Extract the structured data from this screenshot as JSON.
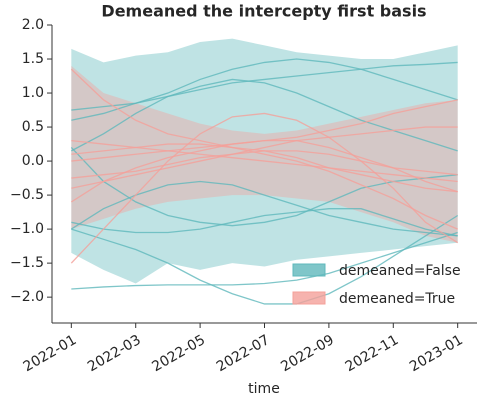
{
  "chart_data": {
    "type": "band-lines",
    "title": "Demeaned the intercepty first basis",
    "xlabel": "time",
    "x": [
      "2022-01",
      "2022-02",
      "2022-03",
      "2022-04",
      "2022-05",
      "2022-06",
      "2022-07",
      "2022-08",
      "2022-09",
      "2022-10",
      "2022-11",
      "2022-12",
      "2023-01"
    ],
    "xticks": [
      "2022-01",
      "2022-03",
      "2022-05",
      "2022-07",
      "2022-09",
      "2022-11",
      "2023-01"
    ],
    "ylim": [
      -2.38,
      2.0
    ],
    "yticks": [
      {
        "value": -2,
        "label": "−2.0"
      },
      {
        "value": -1.5,
        "label": "−1.5"
      },
      {
        "value": -1,
        "label": "−1.0"
      },
      {
        "value": -0.5,
        "label": "−0.5"
      },
      {
        "value": 0,
        "label": "0.0"
      },
      {
        "value": 0.5,
        "label": "0.5"
      },
      {
        "value": 1,
        "label": "1.0"
      },
      {
        "value": 1.5,
        "label": "1.5"
      },
      {
        "value": 2,
        "label": "2.0"
      }
    ],
    "legend": "lower right",
    "series": [
      {
        "name": "demeaned=False",
        "color": "#5fb8bc",
        "upper": [
          1.65,
          1.45,
          1.55,
          1.6,
          1.75,
          1.8,
          1.7,
          1.6,
          1.55,
          1.5,
          1.5,
          1.6,
          1.7
        ],
        "lower": [
          -1.35,
          -1.6,
          -1.8,
          -1.5,
          -1.6,
          -1.5,
          -1.55,
          -1.45,
          -1.4,
          -1.35,
          -1.3,
          -1.25,
          -1.2
        ],
        "lines": [
          [
            0.75,
            0.8,
            0.85,
            0.95,
            1.05,
            1.15,
            1.2,
            1.25,
            1.3,
            1.35,
            1.4,
            1.42,
            1.45
          ],
          [
            0.6,
            0.7,
            0.85,
            1.0,
            1.2,
            1.35,
            1.45,
            1.5,
            1.45,
            1.35,
            1.2,
            1.05,
            0.9
          ],
          [
            0.2,
            -0.3,
            -0.6,
            -0.8,
            -0.9,
            -0.95,
            -0.9,
            -0.8,
            -0.6,
            -0.4,
            -0.3,
            -0.25,
            -0.2
          ],
          [
            -1.0,
            -0.7,
            -0.5,
            -0.35,
            -0.3,
            -0.35,
            -0.5,
            -0.65,
            -0.8,
            -0.9,
            -1.0,
            -1.05,
            -1.1
          ],
          [
            -0.9,
            -1.0,
            -1.05,
            -1.05,
            -1.0,
            -0.9,
            -0.8,
            -0.75,
            -0.7,
            -0.7,
            -0.85,
            -1.0,
            -1.1
          ],
          [
            -1.0,
            -1.15,
            -1.3,
            -1.5,
            -1.75,
            -1.95,
            -2.1,
            -2.1,
            -1.95,
            -1.7,
            -1.4,
            -1.1,
            -0.8
          ],
          [
            -1.88,
            -1.85,
            -1.83,
            -1.82,
            -1.82,
            -1.82,
            -1.8,
            -1.75,
            -1.65,
            -1.5,
            -1.35,
            -1.2,
            -1.05
          ],
          [
            0.15,
            0.4,
            0.7,
            0.95,
            1.1,
            1.2,
            1.15,
            1.0,
            0.8,
            0.6,
            0.45,
            0.3,
            0.15
          ]
        ]
      },
      {
        "name": "demeaned=True",
        "color": "#f4a09a",
        "upper": [
          1.4,
          1.0,
          0.85,
          0.7,
          0.55,
          0.45,
          0.4,
          0.45,
          0.55,
          0.65,
          0.75,
          0.85,
          0.9
        ],
        "lower": [
          -1.0,
          -0.85,
          -0.7,
          -0.6,
          -0.55,
          -0.5,
          -0.5,
          -0.55,
          -0.6,
          -0.75,
          -0.9,
          -1.1,
          -1.2
        ],
        "lines": [
          [
            1.35,
            0.9,
            0.6,
            0.4,
            0.3,
            0.2,
            0.15,
            0.05,
            -0.1,
            -0.2,
            -0.3,
            -0.4,
            -0.45
          ],
          [
            -1.5,
            -1.0,
            -0.5,
            0.0,
            0.4,
            0.65,
            0.7,
            0.6,
            0.35,
            0.0,
            -0.4,
            -0.9,
            -1.2
          ],
          [
            -0.6,
            -0.3,
            -0.1,
            0.05,
            0.15,
            0.25,
            0.3,
            0.35,
            0.45,
            0.55,
            0.7,
            0.8,
            0.9
          ],
          [
            0.3,
            0.25,
            0.2,
            0.15,
            0.1,
            0.05,
            0.0,
            -0.05,
            -0.1,
            -0.15,
            -0.2,
            -0.25,
            -0.3
          ],
          [
            -0.4,
            -0.3,
            -0.2,
            -0.1,
            0.0,
            0.1,
            0.2,
            0.3,
            0.35,
            0.4,
            0.45,
            0.5,
            0.5
          ],
          [
            0.0,
            0.05,
            0.1,
            0.15,
            0.2,
            0.25,
            0.3,
            0.3,
            0.2,
            0.05,
            -0.1,
            -0.3,
            -0.45
          ],
          [
            -0.25,
            -0.2,
            -0.15,
            -0.05,
            0.05,
            0.1,
            0.15,
            0.15,
            0.1,
            0.0,
            -0.1,
            -0.15,
            -0.2
          ],
          [
            0.1,
            0.15,
            0.2,
            0.25,
            0.25,
            0.2,
            0.1,
            0.0,
            -0.15,
            -0.35,
            -0.55,
            -0.8,
            -1.0
          ]
        ]
      }
    ]
  }
}
